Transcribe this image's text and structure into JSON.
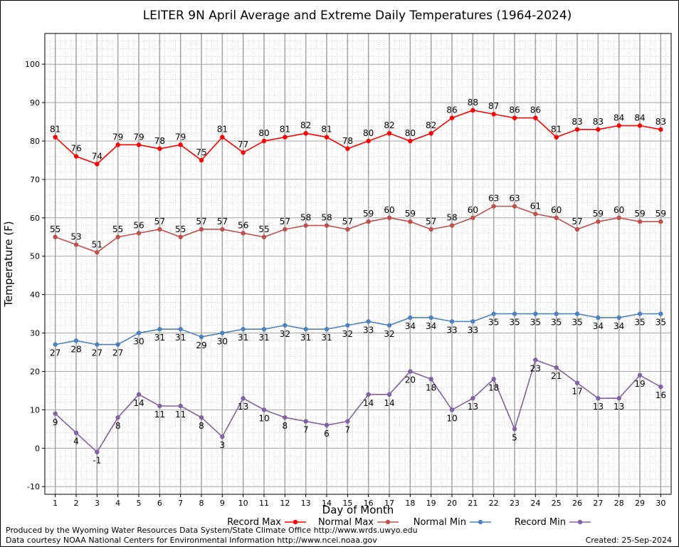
{
  "chart_data": {
    "type": "line",
    "title": "LEITER 9N April Average and Extreme Daily Temperatures (1964-2024)",
    "xlabel": "Day of Month",
    "ylabel": "Temperature (F)",
    "xlim": [
      0.5,
      30.5
    ],
    "ylim": [
      -12,
      108
    ],
    "y_ticks": [
      -10,
      0,
      10,
      20,
      30,
      40,
      50,
      60,
      70,
      80,
      90,
      100
    ],
    "x": [
      1,
      2,
      3,
      4,
      5,
      6,
      7,
      8,
      9,
      10,
      11,
      12,
      13,
      14,
      15,
      16,
      17,
      18,
      19,
      20,
      21,
      22,
      23,
      24,
      25,
      26,
      27,
      28,
      29,
      30
    ],
    "grid": true,
    "legend_position": "bottom",
    "series": [
      {
        "name": "Record Max",
        "color": "#ff0000",
        "label_position": "above",
        "values": [
          81,
          76,
          74,
          79,
          79,
          78,
          79,
          75,
          81,
          77,
          80,
          81,
          82,
          81,
          78,
          80,
          82,
          80,
          82,
          86,
          88,
          87,
          86,
          86,
          81,
          83,
          83,
          84,
          84,
          83
        ]
      },
      {
        "name": "Normal Max",
        "color": "#c0504d",
        "label_position": "above",
        "values": [
          55,
          53,
          51,
          55,
          56,
          57,
          55,
          57,
          57,
          56,
          55,
          57,
          58,
          58,
          57,
          59,
          60,
          59,
          57,
          58,
          60,
          63,
          63,
          61,
          60,
          57,
          59,
          60,
          59,
          59
        ]
      },
      {
        "name": "Normal Min",
        "color": "#4f81bd",
        "label_position": "below",
        "values": [
          27,
          28,
          27,
          27,
          30,
          31,
          31,
          29,
          30,
          31,
          31,
          32,
          31,
          31,
          32,
          33,
          32,
          34,
          34,
          33,
          33,
          35,
          35,
          35,
          35,
          35,
          34,
          34,
          35,
          35
        ]
      },
      {
        "name": "Record Min",
        "color": "#8064a2",
        "label_position": "below",
        "values": [
          9,
          4,
          -1,
          8,
          14,
          11,
          11,
          8,
          3,
          13,
          10,
          8,
          7,
          6,
          7,
          14,
          14,
          20,
          18,
          10,
          13,
          18,
          5,
          23,
          21,
          17,
          13,
          13,
          19,
          16
        ]
      }
    ]
  },
  "footer": {
    "line1": "Produced by the Wyoming Water Resources Data System/State Climate Office http://www.wrds.uwyo.edu",
    "line2": "Data courtesy NOAA National Centers for Environmental Information http://www.ncei.noaa.gov",
    "created": "Created:  25-Sep-2024"
  }
}
